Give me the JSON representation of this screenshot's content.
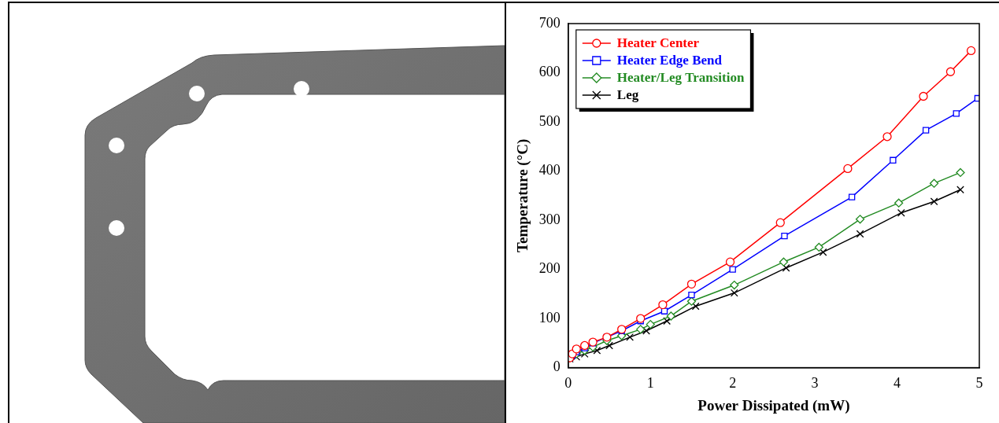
{
  "chart_data": {
    "type": "line",
    "x_label": "Power Dissipated (mW)",
    "y_label": "Temperature (°C)",
    "xlim": [
      0,
      5
    ],
    "xticks": [
      0,
      1,
      2,
      3,
      4,
      5
    ],
    "ylim": [
      0,
      700
    ],
    "yticks": [
      0,
      100,
      200,
      300,
      400,
      500,
      600,
      700
    ],
    "grid": false,
    "legend": "upper left",
    "series": [
      {
        "name": "Heater Center",
        "color": "#ff0000",
        "marker": "circle",
        "line_style": "solid",
        "x": [
          0.02,
          0.05,
          0.1,
          0.2,
          0.3,
          0.47,
          0.65,
          0.88,
          1.15,
          1.5,
          1.97,
          2.58,
          3.4,
          3.88,
          4.32,
          4.65,
          4.9
        ],
        "values": [
          20,
          28,
          38,
          45,
          52,
          62,
          78,
          100,
          128,
          170,
          215,
          295,
          405,
          470,
          552,
          602,
          645
        ]
      },
      {
        "name": "Heater Edge Bend",
        "color": "#0000ff",
        "marker": "square",
        "line_style": "solid",
        "x": [
          0.02,
          0.05,
          0.1,
          0.2,
          0.3,
          0.47,
          0.65,
          0.88,
          1.17,
          1.5,
          2.0,
          2.63,
          3.45,
          3.95,
          4.35,
          4.72,
          4.98
        ],
        "values": [
          20,
          25,
          32,
          40,
          50,
          62,
          75,
          95,
          115,
          148,
          200,
          268,
          347,
          422,
          483,
          517,
          548
        ]
      },
      {
        "name": "Heater/Leg Transition",
        "color": "#238b23",
        "marker": "diamond",
        "line_style": "solid",
        "x": [
          0.02,
          0.1,
          0.2,
          0.3,
          0.47,
          0.65,
          0.88,
          1.0,
          1.25,
          1.5,
          2.02,
          2.62,
          3.05,
          3.55,
          4.02,
          4.45,
          4.77
        ],
        "values": [
          20,
          28,
          35,
          42,
          55,
          65,
          78,
          88,
          105,
          135,
          168,
          215,
          245,
          302,
          335,
          375,
          397
        ]
      },
      {
        "name": "Leg",
        "color": "#000000",
        "marker": "x",
        "line_style": "solid",
        "x": [
          0.02,
          0.1,
          0.2,
          0.35,
          0.5,
          0.75,
          0.95,
          1.2,
          1.55,
          2.02,
          2.65,
          3.1,
          3.55,
          4.05,
          4.45,
          4.77
        ],
        "values": [
          18,
          22,
          28,
          35,
          45,
          62,
          75,
          95,
          125,
          152,
          203,
          235,
          272,
          315,
          338,
          362
        ]
      }
    ]
  }
}
